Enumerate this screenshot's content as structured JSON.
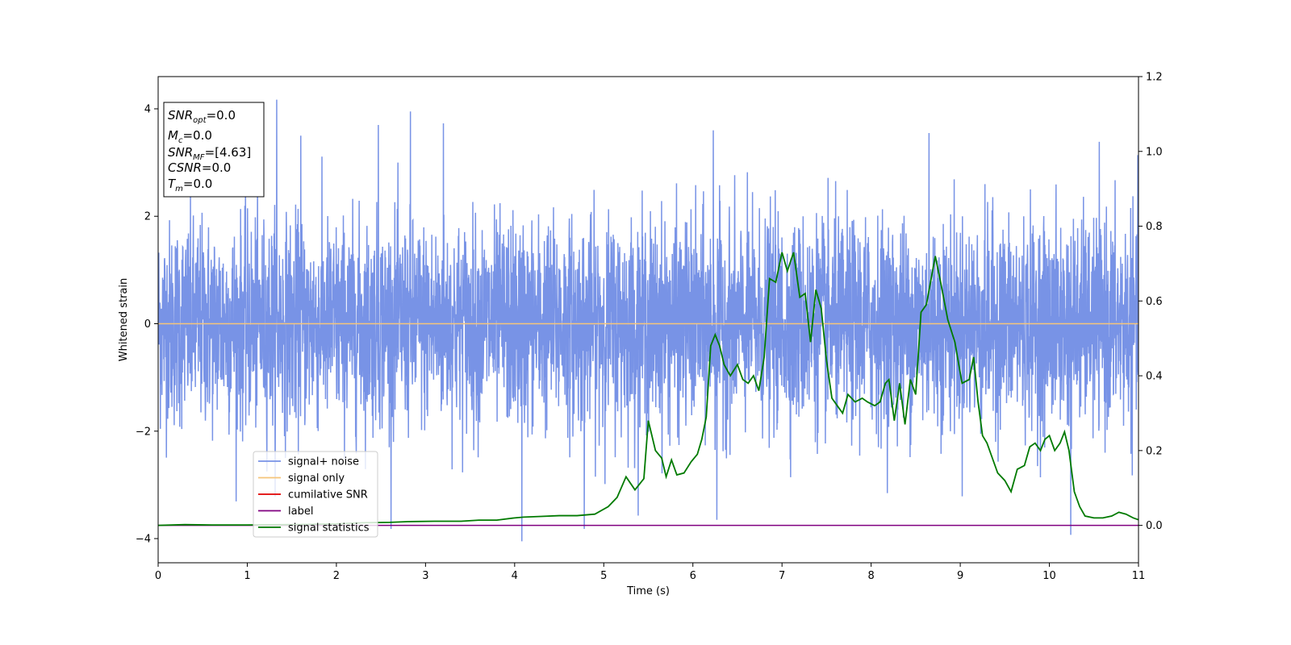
{
  "chart_data": {
    "type": "line",
    "xlabel": "Time (s)",
    "ylabel": "Whitened strain",
    "xlim": [
      0,
      11
    ],
    "ylim_left": [
      -4.45,
      4.6
    ],
    "ylim_right": [
      -0.1,
      1.2
    ],
    "x_ticks": [
      0,
      1,
      2,
      3,
      4,
      5,
      6,
      7,
      8,
      9,
      10,
      11
    ],
    "y_ticks_left": [
      -4,
      -2,
      0,
      2,
      4
    ],
    "y_ticks_right": [
      "0.0",
      "0.2",
      "0.4",
      "0.6",
      "0.8",
      "1.0",
      "1.2"
    ],
    "grid": false,
    "legend_placement": "lower-left",
    "legend": [
      {
        "name": "signal+ noise",
        "color": "#7893e6"
      },
      {
        "name": "signal only",
        "color": "#f5c57a"
      },
      {
        "name": "cumilative SNR",
        "color": "#e00000"
      },
      {
        "name": "label",
        "color": "#800080"
      },
      {
        "name": "signal statistics",
        "color": "#007a00"
      }
    ],
    "annotation": {
      "lines": [
        {
          "base": "SNR",
          "sub": "opt",
          "rest": "=0.0"
        },
        {
          "base": "M",
          "sub": "c",
          "rest": "=0.0"
        },
        {
          "base": "SNR",
          "sub": "MF",
          "rest": "=[4.63]"
        },
        {
          "base": "CSNR",
          "sub": "",
          "rest": "=0.0"
        },
        {
          "base": "T",
          "sub": "m",
          "rest": "=0.0"
        }
      ]
    },
    "series": [
      {
        "name": "signal+ noise",
        "axis": "left",
        "color": "#7893e6",
        "noise_envelope": {
          "x_range": [
            0,
            11
          ],
          "typical_amplitude": 1.9,
          "peak_max": 4.17,
          "peak_min": -4.05
        },
        "spikes": [
          [
            1.33,
            4.17
          ],
          [
            2.83,
            3.95
          ],
          [
            4.08,
            -4.05
          ],
          [
            4.78,
            -3.82
          ],
          [
            6.27,
            -3.65
          ],
          [
            10.24,
            -3.93
          ],
          [
            1.6,
            3.5
          ],
          [
            2.47,
            3.7
          ],
          [
            3.2,
            3.73
          ],
          [
            6.23,
            3.6
          ],
          [
            8.65,
            3.55
          ]
        ]
      },
      {
        "name": "signal only",
        "axis": "left",
        "color": "#f5c57a",
        "x": [
          0,
          11
        ],
        "y": [
          0,
          0
        ]
      },
      {
        "name": "label",
        "axis": "right",
        "color": "#800080",
        "x": [
          0,
          11
        ],
        "y": [
          0,
          0
        ]
      },
      {
        "name": "signal statistics",
        "axis": "right",
        "color": "#007a00",
        "x": [
          0,
          0.3,
          0.6,
          1.0,
          1.5,
          2.0,
          2.3,
          2.6,
          2.8,
          3.1,
          3.4,
          3.6,
          3.8,
          4.0,
          4.1,
          4.3,
          4.5,
          4.7,
          4.9,
          5.05,
          5.15,
          5.25,
          5.35,
          5.45,
          5.5,
          5.58,
          5.65,
          5.7,
          5.76,
          5.82,
          5.9,
          5.98,
          6.05,
          6.1,
          6.15,
          6.2,
          6.25,
          6.3,
          6.35,
          6.42,
          6.5,
          6.56,
          6.62,
          6.68,
          6.74,
          6.8,
          6.86,
          6.93,
          7.0,
          7.06,
          7.13,
          7.2,
          7.26,
          7.32,
          7.38,
          7.44,
          7.5,
          7.56,
          7.62,
          7.68,
          7.74,
          7.82,
          7.9,
          7.96,
          8.04,
          8.1,
          8.16,
          8.2,
          8.26,
          8.32,
          8.38,
          8.44,
          8.5,
          8.56,
          8.62,
          8.72,
          8.78,
          8.86,
          8.94,
          9.02,
          9.1,
          9.15,
          9.2,
          9.25,
          9.3,
          9.36,
          9.42,
          9.5,
          9.57,
          9.64,
          9.72,
          9.78,
          9.84,
          9.9,
          9.95,
          10.0,
          10.06,
          10.12,
          10.17,
          10.22,
          10.28,
          10.34,
          10.4,
          10.5,
          10.6,
          10.7,
          10.78,
          10.86,
          10.94,
          11.0
        ],
        "y": [
          0.0,
          0.002,
          0.001,
          0.001,
          0.002,
          0.004,
          0.007,
          0.008,
          0.01,
          0.011,
          0.011,
          0.014,
          0.014,
          0.02,
          0.022,
          0.024,
          0.026,
          0.026,
          0.03,
          0.05,
          0.075,
          0.13,
          0.095,
          0.125,
          0.28,
          0.2,
          0.18,
          0.13,
          0.175,
          0.135,
          0.14,
          0.17,
          0.19,
          0.23,
          0.29,
          0.48,
          0.51,
          0.48,
          0.43,
          0.4,
          0.43,
          0.39,
          0.38,
          0.4,
          0.36,
          0.45,
          0.66,
          0.65,
          0.73,
          0.68,
          0.73,
          0.61,
          0.62,
          0.49,
          0.63,
          0.58,
          0.44,
          0.34,
          0.32,
          0.3,
          0.35,
          0.33,
          0.34,
          0.33,
          0.32,
          0.33,
          0.38,
          0.39,
          0.28,
          0.38,
          0.27,
          0.39,
          0.35,
          0.57,
          0.59,
          0.72,
          0.65,
          0.55,
          0.49,
          0.38,
          0.39,
          0.45,
          0.33,
          0.24,
          0.22,
          0.18,
          0.14,
          0.12,
          0.09,
          0.15,
          0.16,
          0.21,
          0.22,
          0.2,
          0.23,
          0.24,
          0.2,
          0.22,
          0.25,
          0.2,
          0.09,
          0.05,
          0.025,
          0.02,
          0.02,
          0.025,
          0.035,
          0.03,
          0.02,
          0.015
        ]
      }
    ]
  }
}
